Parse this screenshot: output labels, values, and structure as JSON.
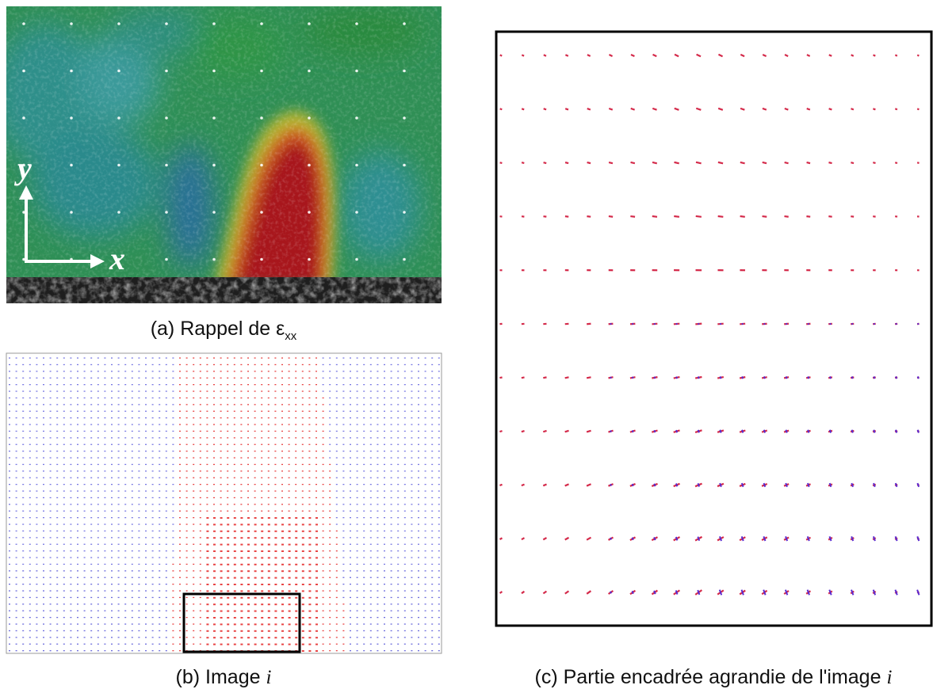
{
  "panel_a": {
    "axis_x": "x",
    "axis_y": "y",
    "caption": {
      "text": "(a) Rappel de ε",
      "subscript": "xx"
    }
  },
  "panel_b": {
    "caption": {
      "text": "(b) Image",
      "italic": "i"
    }
  },
  "panel_c": {
    "caption": {
      "text": "(c) Partie encadrée agrandie de l'image",
      "italic": "i"
    }
  }
}
